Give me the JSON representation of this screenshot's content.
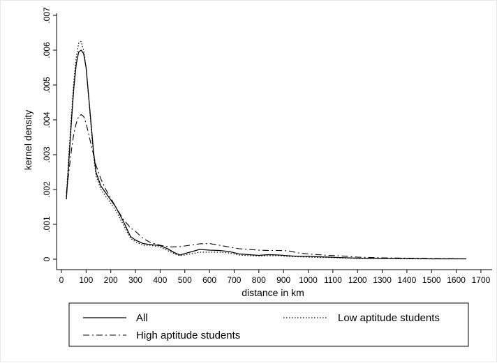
{
  "chart_data": {
    "type": "line",
    "xlabel": "distance in km",
    "ylabel": "kernel density",
    "xlim": [
      0,
      1700
    ],
    "ylim": [
      0,
      0.007
    ],
    "x_ticks": [
      0,
      100,
      200,
      300,
      400,
      500,
      600,
      700,
      800,
      900,
      1000,
      1100,
      1200,
      1300,
      1400,
      1500,
      1600,
      1700
    ],
    "x_tick_labels": [
      "0",
      "100",
      "200",
      "300",
      "400",
      "500",
      "600",
      "700",
      "800",
      "900",
      "1000",
      "1100",
      "1200",
      "1300",
      "1400",
      "1500",
      "1600",
      "1700"
    ],
    "y_ticks": [
      0,
      0.001,
      0.002,
      0.003,
      0.004,
      0.005,
      0.006,
      0.007
    ],
    "y_tick_labels": [
      "0",
      ".001",
      ".002",
      ".003",
      ".004",
      ".005",
      ".006",
      ".007"
    ],
    "grid": false,
    "legend_position": "bottom",
    "series": [
      {
        "name": "All",
        "style": "solid",
        "x": [
          20,
          30,
          40,
          50,
          60,
          70,
          80,
          90,
          100,
          110,
          120,
          130,
          140,
          160,
          180,
          200,
          220,
          250,
          280,
          300,
          330,
          360,
          400,
          430,
          460,
          480,
          500,
          530,
          560,
          600,
          640,
          680,
          720,
          760,
          800,
          840,
          880,
          920,
          960,
          1000,
          1040,
          1080,
          1120,
          1160,
          1200,
          1300,
          1400,
          1500,
          1640
        ],
        "y": [
          0.00172,
          0.0028,
          0.0039,
          0.0049,
          0.0056,
          0.00595,
          0.006,
          0.0059,
          0.0055,
          0.0047,
          0.0039,
          0.0031,
          0.0025,
          0.0021,
          0.0019,
          0.0017,
          0.0015,
          0.0011,
          0.00065,
          0.00055,
          0.00045,
          0.00042,
          0.00039,
          0.0003,
          0.00018,
          0.00012,
          0.00016,
          0.00022,
          0.00028,
          0.00026,
          0.00025,
          0.00022,
          0.00015,
          0.00013,
          0.00011,
          0.00013,
          0.00012,
          0.0001,
          8e-05,
          8e-05,
          7e-05,
          6e-05,
          5e-05,
          4e-05,
          3e-05,
          2e-05,
          2e-05,
          1e-05,
          1e-05
        ]
      },
      {
        "name": "Low aptitude students",
        "style": "dotted",
        "x": [
          20,
          30,
          40,
          50,
          60,
          70,
          80,
          90,
          100,
          110,
          120,
          130,
          140,
          160,
          180,
          200,
          220,
          250,
          280,
          300,
          330,
          360,
          400,
          430,
          460,
          480,
          500,
          530,
          560,
          600,
          640,
          680,
          720,
          760,
          800,
          840,
          880,
          920,
          960,
          1000,
          1040,
          1080,
          1120,
          1160,
          1200,
          1300,
          1400,
          1500,
          1640
        ],
        "y": [
          0.0018,
          0.003,
          0.0041,
          0.0051,
          0.0058,
          0.0062,
          0.00625,
          0.006,
          0.0055,
          0.0047,
          0.0038,
          0.003,
          0.0024,
          0.002,
          0.0018,
          0.0016,
          0.0014,
          0.001,
          0.0006,
          0.0005,
          0.0004,
          0.0004,
          0.00035,
          0.00025,
          0.00015,
          0.0001,
          0.00012,
          0.00016,
          0.0002,
          0.0002,
          0.0002,
          0.00018,
          0.00012,
          0.0001,
          9e-05,
          0.0001,
          0.0001,
          8e-05,
          7e-05,
          6e-05,
          5e-05,
          5e-05,
          4e-05,
          3e-05,
          2e-05,
          2e-05,
          1e-05,
          1e-05,
          1e-05
        ]
      },
      {
        "name": "High aptitude students",
        "style": "dashdot",
        "x": [
          20,
          30,
          40,
          50,
          60,
          70,
          80,
          90,
          100,
          110,
          120,
          130,
          140,
          160,
          180,
          200,
          220,
          250,
          280,
          300,
          330,
          360,
          400,
          440,
          480,
          520,
          560,
          600,
          640,
          680,
          720,
          760,
          800,
          840,
          880,
          920,
          960,
          1000,
          1040,
          1080,
          1120,
          1160,
          1200,
          1300,
          1400,
          1500,
          1640
        ],
        "y": [
          0.0019,
          0.0025,
          0.0031,
          0.0036,
          0.0039,
          0.0041,
          0.00415,
          0.0041,
          0.0039,
          0.0036,
          0.0033,
          0.003,
          0.0027,
          0.0023,
          0.002,
          0.00175,
          0.0015,
          0.00115,
          0.0009,
          0.0008,
          0.0006,
          0.00048,
          0.0004,
          0.00035,
          0.00036,
          0.0004,
          0.00044,
          0.00045,
          0.0004,
          0.00035,
          0.0003,
          0.00028,
          0.00026,
          0.00025,
          0.00025,
          0.00024,
          0.00018,
          0.00015,
          0.00013,
          0.00011,
          0.0001,
          8e-05,
          6e-05,
          4e-05,
          3e-05,
          2e-05,
          1e-05
        ]
      }
    ]
  }
}
